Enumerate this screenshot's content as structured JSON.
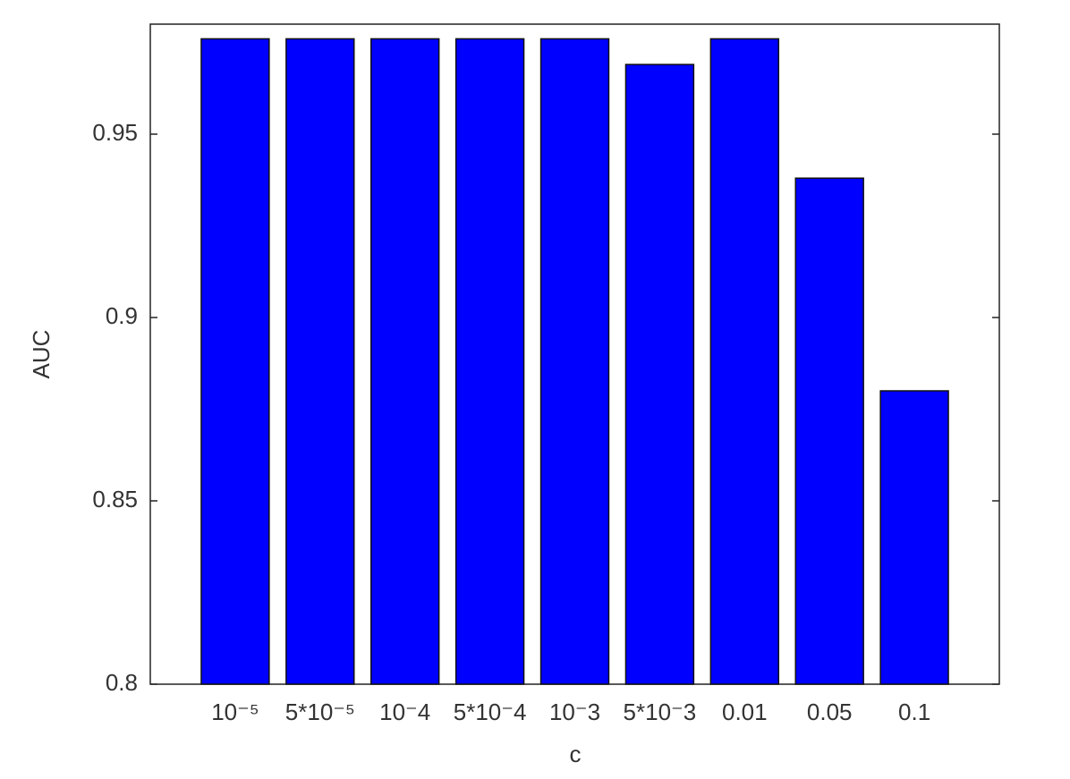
{
  "chart_data": {
    "type": "bar",
    "x_label": "c",
    "y_label": "AUC",
    "categories": [
      "10⁻⁵",
      "5*10⁻⁵",
      "10⁻4",
      "5*10⁻4",
      "10⁻3",
      "5*10⁻3",
      "0.01",
      "0.05",
      "0.1"
    ],
    "values": [
      0.976,
      0.976,
      0.976,
      0.976,
      0.976,
      0.969,
      0.976,
      0.938,
      0.88
    ],
    "color": "#0000ff",
    "ylim": [
      0.8,
      0.98
    ],
    "yticks": [
      0.8,
      0.85,
      0.9,
      0.95
    ],
    "grid": false
  }
}
